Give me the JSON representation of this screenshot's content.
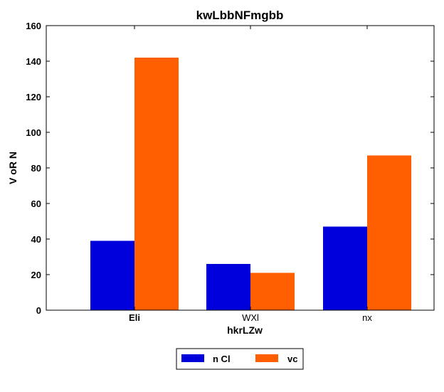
{
  "chart_data": {
    "type": "bar",
    "title": "kwLbbNFmgbb",
    "xlabel": "hkrLZw",
    "ylabel": "V oR N",
    "categories": [
      "Eli",
      "WXl",
      "nx"
    ],
    "category_bold": [
      true,
      false,
      false
    ],
    "series": [
      {
        "name": "n Cl",
        "color": "#0000dd",
        "values": [
          39,
          26,
          47
        ]
      },
      {
        "name": "vc",
        "color": "#ff5f00",
        "values": [
          142,
          21,
          87
        ]
      }
    ],
    "ylim": [
      0,
      160
    ],
    "yticks": [
      0,
      20,
      40,
      60,
      80,
      100,
      120,
      140,
      160
    ],
    "grid": false,
    "legend": {
      "placement": "bottom-center, below plot"
    }
  }
}
